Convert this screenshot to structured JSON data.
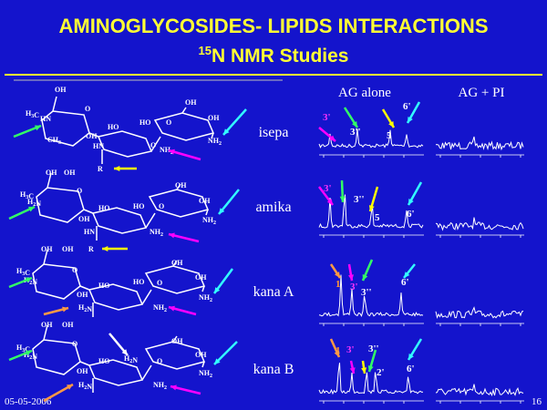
{
  "header": {
    "title": "AMINOGLYCOSIDES- LIPIDS INTERACTIONS",
    "subtitle_sup": "15",
    "subtitle": "N NMR Studies"
  },
  "columns": [
    "AG alone",
    "AG + PI"
  ],
  "rows": [
    {
      "label": "isepa",
      "peaks": [
        "3'",
        "3''",
        "5",
        "6'"
      ],
      "atoms": [
        "OH",
        "H3C",
        "HN",
        "O",
        "OH",
        "CH3",
        "OH",
        "HO",
        "HO",
        "O",
        "OH",
        "HN",
        "NH2",
        "O",
        "NH2",
        "R"
      ]
    },
    {
      "label": "amika",
      "peaks": [
        "3'",
        "3''",
        "5",
        "6'"
      ],
      "atoms": [
        "OH",
        "OH",
        "H3C",
        "H2N",
        "O",
        "OH",
        "HO",
        "HO",
        "O",
        "OH",
        "OH",
        "HN",
        "NH2",
        "NH2",
        "R"
      ]
    },
    {
      "label": "kana A",
      "peaks": [
        "1",
        "3'",
        "3''",
        "6'"
      ],
      "atoms": [
        "OH",
        "OH",
        "H3C",
        "H2N",
        "O",
        "OH",
        "HO",
        "HO",
        "O",
        "OH",
        "OH",
        "H2N",
        "NH2",
        "NH2"
      ]
    },
    {
      "label": "kana B",
      "peaks": [
        "1",
        "3'",
        "3''",
        "2'",
        "6'"
      ],
      "atoms": [
        "OH",
        "OH",
        "H3C",
        "H2N",
        "O",
        "OH",
        "HO",
        "H2N",
        "O",
        "OH",
        "OH",
        "H2N",
        "NH2",
        "NH2"
      ]
    }
  ],
  "footer": {
    "date": "05-05-2006",
    "page": "16"
  }
}
